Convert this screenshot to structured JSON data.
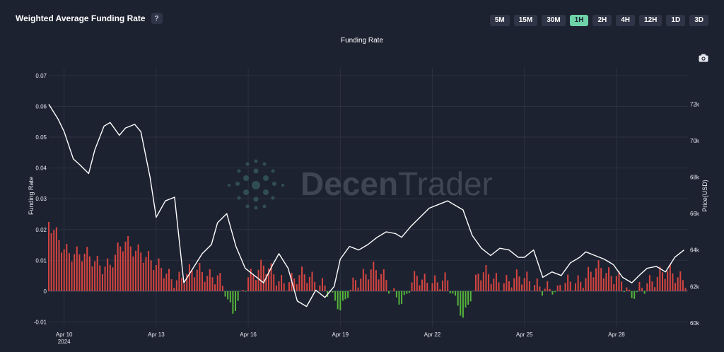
{
  "header": {
    "title": "Weighted Average Funding Rate",
    "help_label": "?",
    "timeframes": [
      "5M",
      "15M",
      "30M",
      "1H",
      "2H",
      "4H",
      "12H",
      "1D",
      "3D"
    ],
    "active_timeframe": "1H",
    "camera_icon": "camera-icon"
  },
  "watermark": {
    "part1": "Decen",
    "part2": "Trader"
  },
  "colors": {
    "positive_bar": "#d64540",
    "negative_bar": "#55b53a",
    "price_line": "#ffffff",
    "accent": "#6fd3a9",
    "background": "#1d2231"
  },
  "chart_data": {
    "type": "bar+line",
    "title": "Funding Rate",
    "ylabel": "Funding Rate",
    "y2label": "Price(USD)",
    "ylim": [
      -0.0115,
      0.0725
    ],
    "y2lim": [
      59800,
      74000
    ],
    "yticks": [
      -0.01,
      0,
      0.01,
      0.02,
      0.03,
      0.04,
      0.05,
      0.06,
      0.07
    ],
    "ytick_labels": [
      "-0.01",
      "0",
      "0.01",
      "0.02",
      "0.03",
      "0.04",
      "0.05",
      "0.06",
      "0.07"
    ],
    "y2ticks": [
      60000,
      62000,
      64000,
      66000,
      68000,
      70000,
      72000
    ],
    "y2tick_labels": [
      "60k",
      "62k",
      "64k",
      "66k",
      "68k",
      "70k",
      "72k"
    ],
    "x_start": "Apr 9 12:00",
    "x_end": "Apr 30 08:00",
    "xticks": [
      {
        "label": "Apr 10",
        "sub": "2024",
        "day": 10
      },
      {
        "label": "Apr 13",
        "sub": "",
        "day": 13
      },
      {
        "label": "Apr 16",
        "sub": "",
        "day": 16
      },
      {
        "label": "Apr 19",
        "sub": "",
        "day": 19
      },
      {
        "label": "Apr 22",
        "sub": "",
        "day": 22
      },
      {
        "label": "Apr 25",
        "sub": "",
        "day": 25
      },
      {
        "label": "Apr 28",
        "sub": "",
        "day": 28
      }
    ],
    "grid": true,
    "series": [
      {
        "name": "Funding Rate",
        "kind": "bar",
        "x": [
          9.5,
          10.0,
          10.5,
          11.0,
          11.5,
          12.0,
          12.5,
          13.0,
          13.5,
          14.0,
          14.5,
          15.0,
          15.5,
          16.0,
          16.5,
          17.0,
          17.5,
          18.0,
          18.5,
          19.0,
          19.5,
          20.0,
          20.5,
          21.0,
          21.5,
          22.0,
          22.5,
          23.0,
          23.5,
          24.0,
          24.5,
          25.0,
          25.5,
          26.0,
          26.5,
          27.0,
          27.5,
          28.0,
          28.5,
          29.0,
          29.5,
          30.0
        ],
        "values": [
          0.021,
          0.015,
          0.011,
          0.01,
          0.009,
          0.015,
          0.014,
          0.007,
          0.005,
          0.005,
          0.006,
          0.006,
          -0.008,
          0.006,
          0.007,
          0.004,
          0.004,
          0.004,
          0.003,
          -0.007,
          0.005,
          0.006,
          0.004,
          -0.004,
          0.004,
          0.004,
          0.002,
          -0.008,
          0.005,
          0.004,
          0.004,
          0.003,
          0.003,
          -0.001,
          0.004,
          0.004,
          0.007,
          0.006,
          -0.003,
          0.004,
          0.005,
          0.005
        ]
      },
      {
        "name": "Price(USD)",
        "kind": "line",
        "x": [
          9.5,
          9.8,
          10.0,
          10.3,
          10.5,
          10.8,
          11.0,
          11.3,
          11.5,
          11.8,
          12.0,
          12.3,
          12.5,
          12.8,
          13.0,
          13.3,
          13.6,
          13.9,
          14.2,
          14.5,
          14.8,
          15.0,
          15.3,
          15.6,
          15.9,
          16.2,
          16.5,
          16.8,
          17.0,
          17.3,
          17.6,
          17.9,
          18.2,
          18.5,
          18.8,
          19.0,
          19.3,
          19.6,
          19.9,
          20.2,
          20.5,
          20.8,
          21.0,
          21.3,
          21.6,
          21.9,
          22.2,
          22.5,
          22.8,
          23.0,
          23.3,
          23.6,
          23.9,
          24.2,
          24.5,
          24.8,
          25.0,
          25.3,
          25.6,
          25.9,
          26.2,
          26.5,
          26.8,
          27.0,
          27.3,
          27.6,
          27.9,
          28.2,
          28.5,
          28.8,
          29.0,
          29.3,
          29.6,
          29.9,
          30.2
        ],
        "values": [
          72000,
          71200,
          70500,
          69000,
          68700,
          68200,
          69500,
          70800,
          71000,
          70300,
          70700,
          70900,
          70500,
          68000,
          65800,
          66700,
          66900,
          62200,
          63000,
          63800,
          64300,
          65500,
          66000,
          64200,
          63000,
          62600,
          62200,
          63200,
          63800,
          63000,
          61200,
          60900,
          61800,
          61400,
          62000,
          63500,
          64200,
          64000,
          64300,
          64700,
          65000,
          64900,
          64700,
          65300,
          65800,
          66300,
          66500,
          66700,
          66400,
          66200,
          64800,
          64100,
          63700,
          64100,
          64000,
          63600,
          63600,
          64000,
          62500,
          62800,
          62600,
          63300,
          63600,
          63900,
          63700,
          63500,
          63200,
          62500,
          62200,
          62700,
          63000,
          63100,
          62800,
          63600,
          64000
        ]
      }
    ]
  }
}
